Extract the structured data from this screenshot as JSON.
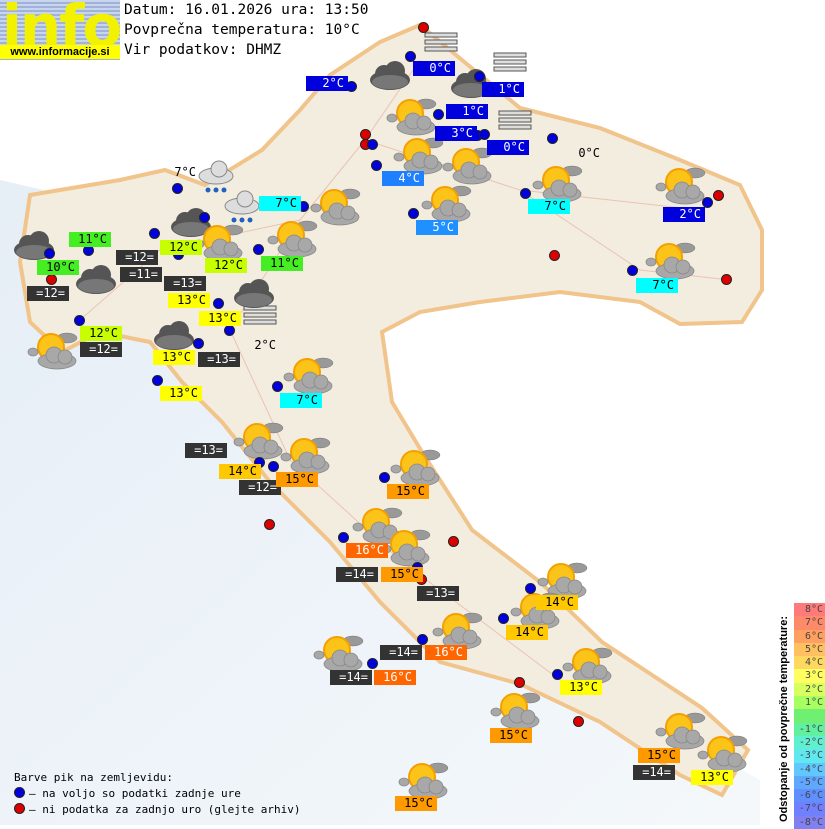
{
  "header": {
    "logo_word": "info",
    "logo_url": "www.informacije.si",
    "date_line": "Datum: 16.01.2026 ura: 13:50",
    "avg_line": "Povprečna temperatura: 10°C",
    "source_line": "Vir podatkov: DHMZ"
  },
  "labels": [
    {
      "text": "2°C",
      "bg": "#0000dd",
      "fg": "#ffffff"
    },
    {
      "text": "0°C",
      "bg": "#0000dd",
      "fg": "#ffffff"
    },
    {
      "text": "1°C",
      "bg": "#0000dd",
      "fg": "#ffffff"
    },
    {
      "text": "1°C",
      "bg": "#0000dd",
      "fg": "#ffffff"
    },
    {
      "text": "3°C",
      "bg": "#0000dd",
      "fg": "#ffffff"
    },
    {
      "text": "0°C",
      "bg": "#0000dd",
      "fg": "#ffffff"
    },
    {
      "text": "4°C",
      "bg": "#1e7fff",
      "fg": "#ffffff"
    },
    {
      "text": "5°C",
      "bg": "#1e90ff",
      "fg": "#ffffff"
    },
    {
      "text": "7°C",
      "bg": "#00ffff",
      "fg": "#000000"
    },
    {
      "text": "2°C",
      "bg": "#0000dd",
      "fg": "#ffffff"
    },
    {
      "text": "7°C",
      "bg": "#00ffff",
      "fg": "#000000"
    },
    {
      "text": "0°C",
      "bg": "transparent",
      "fg": "#000000"
    },
    {
      "text": "7°C",
      "bg": "#00ffff",
      "fg": "#000000"
    },
    {
      "text": "7°C",
      "bg": "transparent",
      "fg": "#000000"
    },
    {
      "text": "11°C",
      "bg": "#44ee22",
      "fg": "#000000"
    },
    {
      "text": "12°C",
      "bg": "#c8ff00",
      "fg": "#000000"
    },
    {
      "text": "12°C",
      "bg": "#c8ff00",
      "fg": "#000000"
    },
    {
      "text": "11°C",
      "bg": "#44ee22",
      "fg": "#000000"
    },
    {
      "text": "10°C",
      "bg": "#44ee22",
      "fg": "#000000"
    },
    {
      "text": "=12=",
      "bg": "#333333",
      "fg": "#ffffff"
    },
    {
      "text": "=12=",
      "bg": "#333333",
      "fg": "#ffffff"
    },
    {
      "text": "=11=",
      "bg": "#333333",
      "fg": "#ffffff"
    },
    {
      "text": "13°C",
      "bg": "#ffff00",
      "fg": "#000000"
    },
    {
      "text": "=13=",
      "bg": "#333333",
      "fg": "#ffffff"
    },
    {
      "text": "13°C",
      "bg": "#ffff00",
      "fg": "#000000"
    },
    {
      "text": "12°C",
      "bg": "#c8ff00",
      "fg": "#000000"
    },
    {
      "text": "=12=",
      "bg": "#333333",
      "fg": "#ffffff"
    },
    {
      "text": "13°C",
      "bg": "#ffff00",
      "fg": "#000000"
    },
    {
      "text": "=13=",
      "bg": "#333333",
      "fg": "#ffffff"
    },
    {
      "text": "2°C",
      "bg": "transparent",
      "fg": "#000000"
    },
    {
      "text": "13°C",
      "bg": "#ffff00",
      "fg": "#000000"
    },
    {
      "text": "7°C",
      "bg": "#00ffff",
      "fg": "#000000"
    },
    {
      "text": "=13=",
      "bg": "#333333",
      "fg": "#ffffff"
    },
    {
      "text": "14°C",
      "bg": "#ffc800",
      "fg": "#000000"
    },
    {
      "text": "=12=",
      "bg": "#333333",
      "fg": "#ffffff"
    },
    {
      "text": "15°C",
      "bg": "#ff9900",
      "fg": "#000000"
    },
    {
      "text": "15°C",
      "bg": "#ff9900",
      "fg": "#000000"
    },
    {
      "text": "16°C",
      "bg": "#ff6600",
      "fg": "#ffffff"
    },
    {
      "text": "=14=",
      "bg": "#333333",
      "fg": "#ffffff"
    },
    {
      "text": "15°C",
      "bg": "#ff9900",
      "fg": "#000000"
    },
    {
      "text": "=13=",
      "bg": "#333333",
      "fg": "#ffffff"
    },
    {
      "text": "14°C",
      "bg": "#ffc800",
      "fg": "#000000"
    },
    {
      "text": "14°C",
      "bg": "#ffc800",
      "fg": "#000000"
    },
    {
      "text": "=14=",
      "bg": "#333333",
      "fg": "#ffffff"
    },
    {
      "text": "16°C",
      "bg": "#ff6600",
      "fg": "#ffffff"
    },
    {
      "text": "=14=",
      "bg": "#333333",
      "fg": "#ffffff"
    },
    {
      "text": "16°C",
      "bg": "#ff6600",
      "fg": "#ffffff"
    },
    {
      "text": "13°C",
      "bg": "#ffff00",
      "fg": "#000000"
    },
    {
      "text": "15°C",
      "bg": "#ff9900",
      "fg": "#000000"
    },
    {
      "text": "15°C",
      "bg": "#ff9900",
      "fg": "#000000"
    },
    {
      "text": "=14=",
      "bg": "#333333",
      "fg": "#ffffff"
    },
    {
      "text": "13°C",
      "bg": "#ffff00",
      "fg": "#000000"
    },
    {
      "text": "15°C",
      "bg": "#ff9900",
      "fg": "#000000"
    }
  ],
  "dots": [
    "red",
    "blue",
    "blue",
    "blue",
    "blue",
    "red",
    "red",
    "blue",
    "blue",
    "blue",
    "blue",
    "blue",
    "blue",
    "blue",
    "blue",
    "blue",
    "blue",
    "blue",
    "blue",
    "blue",
    "blue",
    "red",
    "blue",
    "blue",
    "blue",
    "blue",
    "blue",
    "blue",
    "blue",
    "blue",
    "blue",
    "red",
    "blue",
    "red",
    "blue",
    "red",
    "blue",
    "blue",
    "blue",
    "blue",
    "red",
    "blue",
    "red",
    "red",
    "red",
    "red",
    "blue",
    "blue",
    "blue"
  ],
  "icons": [
    "fog",
    "fog",
    "fog",
    "fog",
    "cloud",
    "cloud",
    "cloud",
    "cloud",
    "cloud",
    "cloud",
    "cloud",
    "rain",
    "rain",
    "sun-cloud",
    "sun-cloud",
    "sun-cloud",
    "sun-cloud",
    "sun-cloud",
    "sun-cloud",
    "sun-cloud",
    "sun-cloud",
    "sun-cloud",
    "sun-cloud",
    "sun-cloud",
    "sun-cloud",
    "sun-cloud",
    "sun-cloud",
    "sun-cloud",
    "sun-cloud",
    "sun-cloud",
    "sun-cloud",
    "sun-cloud",
    "sun-cloud",
    "sun-cloud",
    "sun-cloud",
    "sun-cloud",
    "sun-cloud",
    "sun-cloud",
    "sun-cloud"
  ],
  "legend": {
    "title": "Barve pik na zemljevidu:",
    "blue_text": "– na voljo so podatki zadnje ure",
    "red_text": "– ni podatka za zadnjo uro (glejte arhiv)",
    "blue_color": "#0000dd",
    "red_color": "#dd0000"
  },
  "scale": {
    "title": "Odstopanje od povprečne temperature:",
    "steps": [
      {
        "text": "8°C",
        "color": "#ff7a7a"
      },
      {
        "text": "7°C",
        "color": "#ff8a6a"
      },
      {
        "text": "6°C",
        "color": "#ffa060"
      },
      {
        "text": "5°C",
        "color": "#ffc060"
      },
      {
        "text": "4°C",
        "color": "#ffd860"
      },
      {
        "text": "3°C",
        "color": "#ffff60"
      },
      {
        "text": "2°C",
        "color": "#d8ff60"
      },
      {
        "text": "1°C",
        "color": "#a8ff60"
      },
      {
        "text": "",
        "color": "#70f070"
      },
      {
        "text": "-1°C",
        "color": "#60f0a0"
      },
      {
        "text": "-2°C",
        "color": "#60f0d0"
      },
      {
        "text": "-3°C",
        "color": "#60e8f0"
      },
      {
        "text": "-4°C",
        "color": "#60c8ff"
      },
      {
        "text": "-5°C",
        "color": "#60a8ff"
      },
      {
        "text": "-6°C",
        "color": "#6090ff"
      },
      {
        "text": "-7°C",
        "color": "#7080ff"
      },
      {
        "text": "-8°C",
        "color": "#8080f0"
      }
    ]
  }
}
